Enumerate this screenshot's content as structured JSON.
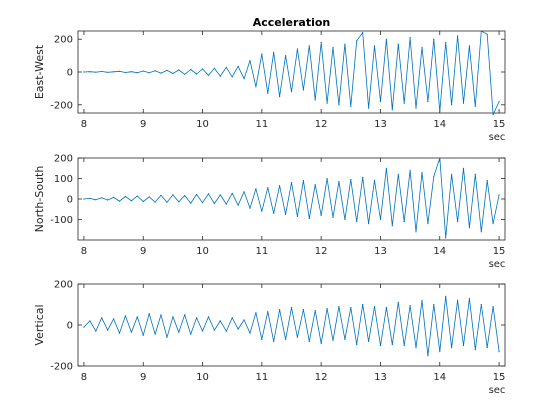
{
  "chart_data": [
    {
      "type": "line",
      "title": "Acceleration",
      "ylabel": "East-West",
      "xunit": "sec",
      "xlim": [
        7.9,
        15.1
      ],
      "ylim": [
        -250,
        250
      ],
      "xticks": [
        8,
        9,
        10,
        11,
        12,
        13,
        14,
        15
      ],
      "yticks": [
        -200,
        0,
        200
      ],
      "line_color": "#0072BD",
      "series": [
        {
          "name": "",
          "x": [
            8.0,
            8.1,
            8.2,
            8.3,
            8.4,
            8.5,
            8.6,
            8.7,
            8.8,
            8.9,
            9.0,
            9.1,
            9.2,
            9.3,
            9.4,
            9.5,
            9.6,
            9.7,
            9.8,
            9.9,
            10.0,
            10.1,
            10.2,
            10.3,
            10.4,
            10.5,
            10.6,
            10.7,
            10.8,
            10.9,
            11.0,
            11.1,
            11.2,
            11.3,
            11.4,
            11.5,
            11.6,
            11.7,
            11.8,
            11.9,
            12.0,
            12.1,
            12.2,
            12.3,
            12.4,
            12.5,
            12.6,
            12.7,
            12.8,
            12.9,
            13.0,
            13.1,
            13.2,
            13.3,
            13.4,
            13.5,
            13.6,
            13.7,
            13.8,
            13.9,
            14.0,
            14.1,
            14.2,
            14.3,
            14.4,
            14.5,
            14.6,
            14.7,
            14.8,
            14.9,
            15.0
          ],
          "y": [
            0,
            2,
            -1,
            3,
            -2,
            1,
            4,
            -3,
            2,
            -4,
            6,
            -5,
            8,
            -7,
            10,
            -9,
            12,
            -14,
            15,
            -12,
            18,
            -20,
            22,
            -25,
            28,
            -30,
            35,
            -40,
            70,
            -90,
            110,
            -130,
            120,
            -150,
            100,
            -120,
            140,
            -110,
            160,
            -170,
            180,
            -190,
            150,
            -200,
            170,
            -210,
            190,
            240,
            -220,
            160,
            -180,
            200,
            -230,
            170,
            -190,
            210,
            -220,
            150,
            -180,
            200,
            -240,
            180,
            -200,
            220,
            -190,
            160,
            -210,
            250,
            230,
            -260,
            -180
          ]
        }
      ]
    },
    {
      "type": "line",
      "title": "",
      "ylabel": "North-South",
      "xunit": "sec",
      "xlim": [
        7.9,
        15.1
      ],
      "ylim": [
        -200,
        200
      ],
      "xticks": [
        8,
        9,
        10,
        11,
        12,
        13,
        14,
        15
      ],
      "yticks": [
        -100,
        0,
        100,
        200
      ],
      "line_color": "#0072BD",
      "series": [
        {
          "name": "",
          "x": [
            8.0,
            8.1,
            8.2,
            8.3,
            8.4,
            8.5,
            8.6,
            8.7,
            8.8,
            8.9,
            9.0,
            9.1,
            9.2,
            9.3,
            9.4,
            9.5,
            9.6,
            9.7,
            9.8,
            9.9,
            10.0,
            10.1,
            10.2,
            10.3,
            10.4,
            10.5,
            10.6,
            10.7,
            10.8,
            10.9,
            11.0,
            11.1,
            11.2,
            11.3,
            11.4,
            11.5,
            11.6,
            11.7,
            11.8,
            11.9,
            12.0,
            12.1,
            12.2,
            12.3,
            12.4,
            12.5,
            12.6,
            12.7,
            12.8,
            12.9,
            13.0,
            13.1,
            13.2,
            13.3,
            13.4,
            13.5,
            13.6,
            13.7,
            13.8,
            13.9,
            14.0,
            14.1,
            14.2,
            14.3,
            14.4,
            14.5,
            14.6,
            14.7,
            14.8,
            14.9,
            15.0
          ],
          "y": [
            0,
            3,
            -4,
            6,
            -5,
            8,
            -10,
            12,
            -9,
            14,
            -12,
            10,
            -15,
            18,
            -16,
            20,
            -14,
            17,
            -20,
            22,
            -18,
            25,
            -22,
            20,
            -25,
            28,
            -30,
            35,
            -45,
            50,
            -60,
            55,
            -70,
            65,
            -75,
            80,
            -85,
            90,
            -95,
            70,
            -80,
            100,
            -90,
            85,
            -100,
            95,
            -110,
            105,
            -120,
            90,
            -100,
            150,
            -130,
            120,
            -110,
            140,
            -160,
            130,
            -120,
            110,
            200,
            -190,
            120,
            -110,
            150,
            -140,
            120,
            -160,
            90,
            -120,
            20
          ]
        }
      ]
    },
    {
      "type": "line",
      "title": "",
      "ylabel": "Vertical",
      "xunit": "sec",
      "xlim": [
        7.9,
        15.1
      ],
      "ylim": [
        -200,
        200
      ],
      "xticks": [
        8,
        9,
        10,
        11,
        12,
        13,
        14,
        15
      ],
      "yticks": [
        -200,
        0,
        200
      ],
      "line_color": "#0072BD",
      "series": [
        {
          "name": "",
          "x": [
            8.0,
            8.1,
            8.2,
            8.3,
            8.4,
            8.5,
            8.6,
            8.7,
            8.8,
            8.9,
            9.0,
            9.1,
            9.2,
            9.3,
            9.4,
            9.5,
            9.6,
            9.7,
            9.8,
            9.9,
            10.0,
            10.1,
            10.2,
            10.3,
            10.4,
            10.5,
            10.6,
            10.7,
            10.8,
            10.9,
            11.0,
            11.1,
            11.2,
            11.3,
            11.4,
            11.5,
            11.6,
            11.7,
            11.8,
            11.9,
            12.0,
            12.1,
            12.2,
            12.3,
            12.4,
            12.5,
            12.6,
            12.7,
            12.8,
            12.9,
            13.0,
            13.1,
            13.2,
            13.3,
            13.4,
            13.5,
            13.6,
            13.7,
            13.8,
            13.9,
            14.0,
            14.1,
            14.2,
            14.3,
            14.4,
            14.5,
            14.6,
            14.7,
            14.8,
            14.9,
            15.0
          ],
          "y": [
            -10,
            20,
            -30,
            35,
            -25,
            30,
            -40,
            45,
            -35,
            40,
            -50,
            55,
            -45,
            50,
            -60,
            40,
            -35,
            50,
            -45,
            35,
            -30,
            40,
            -25,
            20,
            -30,
            35,
            -20,
            25,
            -40,
            60,
            -70,
            65,
            -80,
            75,
            -70,
            85,
            -60,
            75,
            -80,
            70,
            -90,
            80,
            -75,
            90,
            -70,
            85,
            -95,
            100,
            -80,
            90,
            -100,
            85,
            -95,
            110,
            -100,
            95,
            -110,
            120,
            -150,
            100,
            -130,
            140,
            -110,
            120,
            -100,
            130,
            -120,
            100,
            -110,
            90,
            -130
          ]
        }
      ]
    }
  ]
}
